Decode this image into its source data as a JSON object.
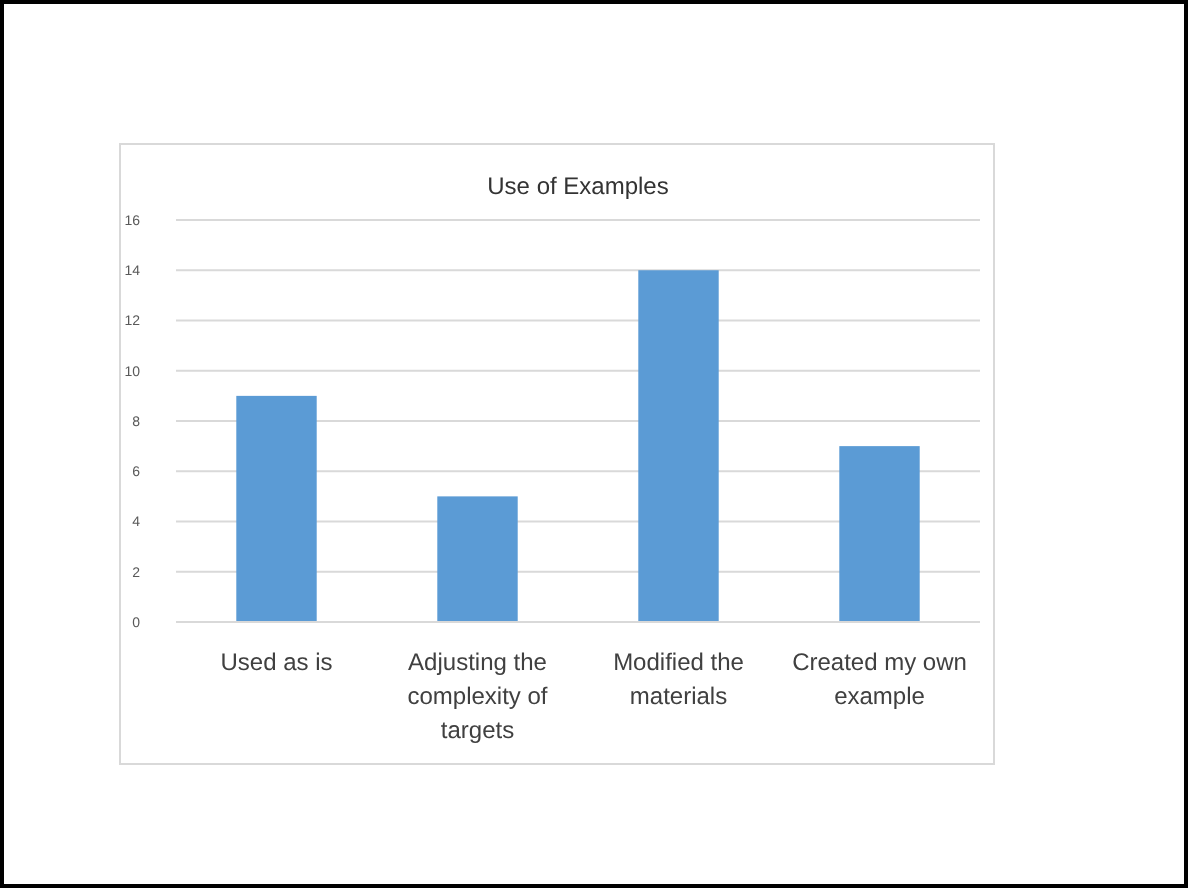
{
  "chart_data": {
    "type": "bar",
    "title": "Use of Examples",
    "categories": [
      "Used as is",
      "Adjusting the complexity of targets",
      "Modified the materials",
      "Created my own example"
    ],
    "values": [
      9,
      5,
      14,
      7
    ],
    "color": "#5b9bd5",
    "ylim": [
      0,
      16
    ],
    "yticks": [
      0,
      2,
      4,
      6,
      8,
      10,
      12,
      14,
      16
    ],
    "grid": "y"
  }
}
